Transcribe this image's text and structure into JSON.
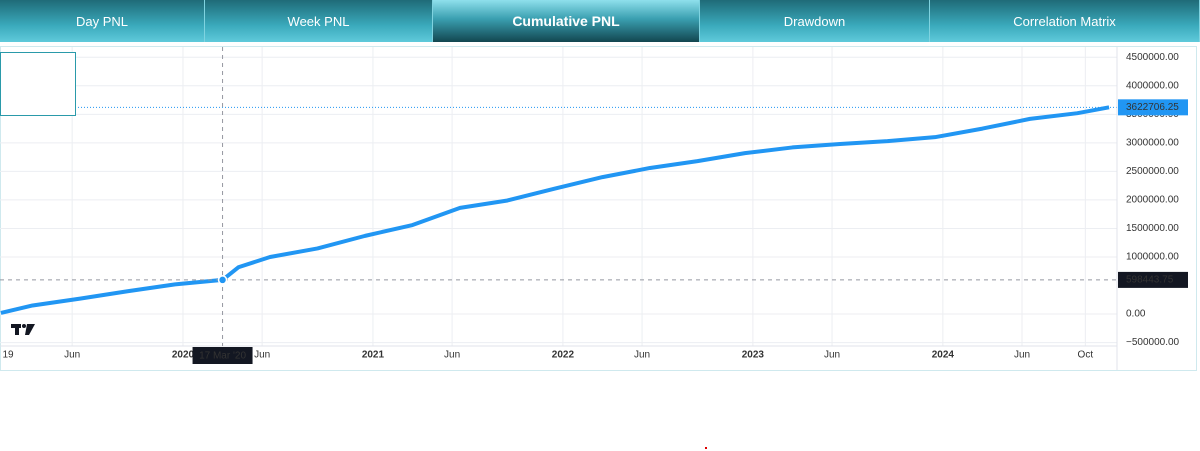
{
  "tabs": [
    "Day PNL",
    "Week PNL",
    "Cumulative PNL",
    "Drawdown",
    "Correlation Matrix"
  ],
  "active_tab": 2,
  "chart_data": {
    "type": "line",
    "x": [
      "2019-01",
      "2019-03",
      "2019-06",
      "2019-09",
      "2019-12",
      "2020-03",
      "2020-04",
      "2020-06",
      "2020-09",
      "2020-12",
      "2021-03",
      "2021-06",
      "2021-09",
      "2021-12",
      "2022-03",
      "2022-06",
      "2022-09",
      "2022-12",
      "2023-03",
      "2023-06",
      "2023-09",
      "2023-12",
      "2024-03",
      "2024-06",
      "2024-09",
      "2024-11"
    ],
    "series": [
      {
        "name": "Cumulative PNL",
        "color": "#2196f3",
        "values": [
          20000,
          150000,
          270000,
          400000,
          520000,
          598443.75,
          820000,
          1000000,
          1150000,
          1370000,
          1560000,
          1860000,
          1990000,
          2200000,
          2400000,
          2560000,
          2680000,
          2820000,
          2920000,
          2980000,
          3030000,
          3100000,
          3250000,
          3420000,
          3520000,
          3622706.25
        ]
      }
    ],
    "xlim": [
      "2019-01",
      "2024-12"
    ],
    "xticks": [
      {
        "value": "2019-01",
        "label": "19"
      },
      {
        "value": "2019-06",
        "label": "Jun"
      },
      {
        "value": "2020-01",
        "label": "2020"
      },
      {
        "value": "2020-06",
        "label": "Jun"
      },
      {
        "value": "2021-01",
        "label": "2021"
      },
      {
        "value": "2021-06",
        "label": "Jun"
      },
      {
        "value": "2022-01",
        "label": "2022"
      },
      {
        "value": "2022-06",
        "label": "Jun"
      },
      {
        "value": "2023-01",
        "label": "2023"
      },
      {
        "value": "2023-06",
        "label": "Jun"
      },
      {
        "value": "2024-01",
        "label": "2024"
      },
      {
        "value": "2024-06",
        "label": "Jun"
      },
      {
        "value": "2024-10",
        "label": "Oct"
      }
    ],
    "ylim": [
      -560000,
      4680000
    ],
    "yticks": [
      {
        "value": 4500000,
        "label": "4500000.00"
      },
      {
        "value": 4000000,
        "label": "4000000.00"
      },
      {
        "value": 3500000,
        "label": "3500000.00"
      },
      {
        "value": 3000000,
        "label": "3000000.00"
      },
      {
        "value": 2500000,
        "label": "2500000.00"
      },
      {
        "value": 2000000,
        "label": "2000000.00"
      },
      {
        "value": 1500000,
        "label": "1500000.00"
      },
      {
        "value": 1000000,
        "label": "1000000.00"
      },
      {
        "value": 0,
        "label": "0.00"
      },
      {
        "value": -500000,
        "label": "−500000.00"
      }
    ],
    "grid": true,
    "crosshair": {
      "index": 5,
      "label": "17 Mar '20"
    }
  }
}
